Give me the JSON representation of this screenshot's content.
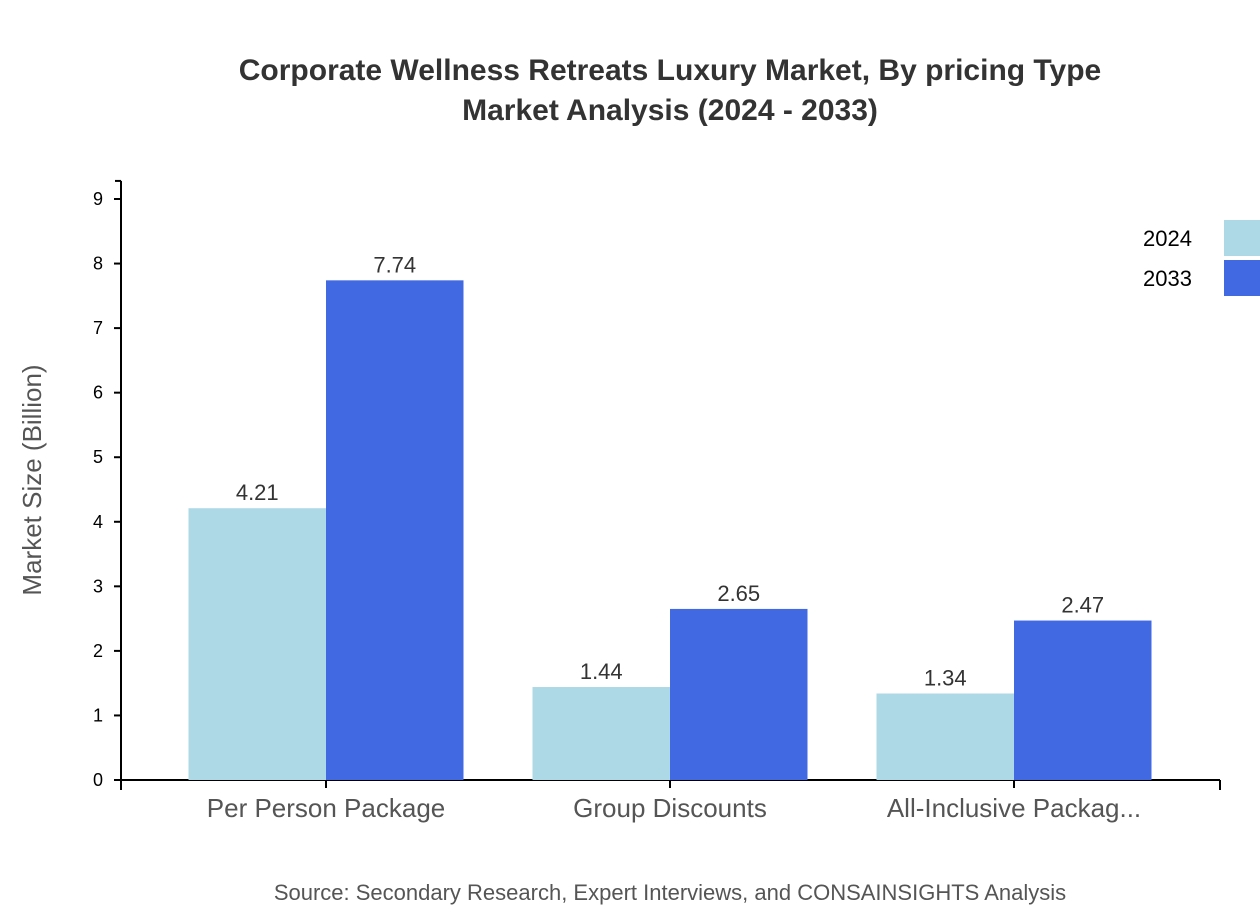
{
  "chart_data": {
    "type": "bar",
    "title": "Corporate Wellness Retreats Luxury Market, By pricing Type",
    "subtitle": "Market Analysis (2024 - 2033)",
    "xlabel": "",
    "ylabel": "Market Size (Billion)",
    "categories": [
      "Per Person Package",
      "Group Discounts",
      "All-Inclusive Packag..."
    ],
    "series": [
      {
        "name": "2024",
        "values": [
          4.21,
          1.44,
          1.34
        ],
        "color": "#add8e6"
      },
      {
        "name": "2033",
        "values": [
          7.74,
          2.65,
          2.47
        ],
        "color": "#4169e1"
      }
    ],
    "yticks": [
      "0",
      "1",
      "2",
      "3",
      "4",
      "5",
      "6",
      "7",
      "8",
      "9"
    ],
    "ylim": [
      0,
      9.28
    ],
    "grid": false,
    "legend": "top-right",
    "source": "Source: Secondary Research, Expert Interviews, and CONSAINSIGHTS Analysis"
  }
}
